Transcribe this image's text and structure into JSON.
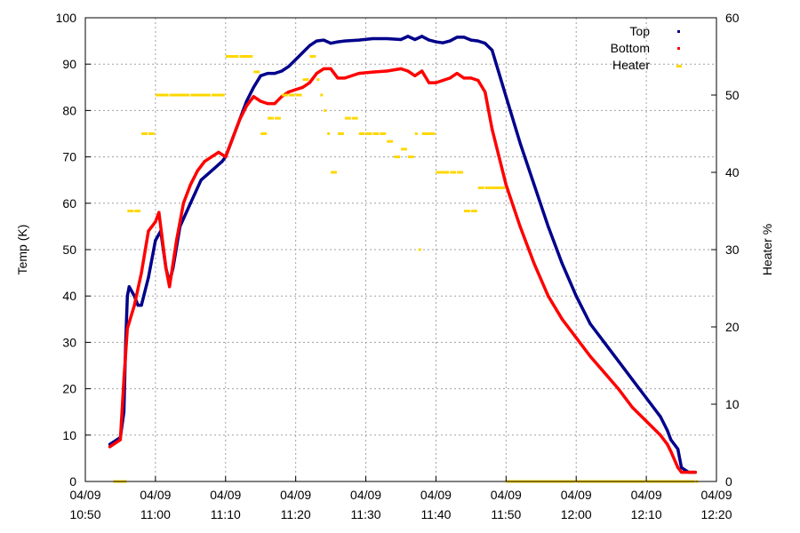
{
  "chart_data": {
    "type": "scatter",
    "title": "",
    "ylabel": "Temp (K)",
    "y2label": "Heater %",
    "xlabel": "",
    "ylim": [
      0,
      100
    ],
    "y2lim": [
      0,
      60
    ],
    "xlim": [
      "04/09 10:50",
      "04/09 12:20"
    ],
    "grid": true,
    "legend_position": "top-right",
    "yticks": [
      "0",
      "10",
      "20",
      "30",
      "40",
      "50",
      "60",
      "70",
      "80",
      "90",
      "100"
    ],
    "y2ticks": [
      "0",
      "10",
      "20",
      "30",
      "40",
      "50",
      "60"
    ],
    "xticks": [
      {
        "date": "04/09",
        "time": "10:50"
      },
      {
        "date": "04/09",
        "time": "11:00"
      },
      {
        "date": "04/09",
        "time": "11:10"
      },
      {
        "date": "04/09",
        "time": "11:20"
      },
      {
        "date": "04/09",
        "time": "11:30"
      },
      {
        "date": "04/09",
        "time": "11:40"
      },
      {
        "date": "04/09",
        "time": "11:50"
      },
      {
        "date": "04/09",
        "time": "12:00"
      },
      {
        "date": "04/09",
        "time": "12:10"
      },
      {
        "date": "04/09",
        "time": "12:20"
      }
    ],
    "series": [
      {
        "name": "Top",
        "color": "#00008b",
        "axis": "left",
        "x": [
          "10:53:30",
          "10:55:00",
          "10:55:30",
          "10:55:45",
          "10:56:00",
          "10:56:15",
          "10:57:00",
          "10:57:30",
          "10:58:00",
          "10:59:00",
          "11:00:00",
          "11:00:45",
          "11:01:30",
          "11:02:00",
          "11:02:30",
          "11:03:30",
          "11:05:00",
          "11:06:30",
          "11:08:00",
          "11:09:30",
          "11:10:00",
          "11:11:00",
          "11:12:00",
          "11:13:00",
          "11:14:00",
          "11:15:00",
          "11:16:00",
          "11:17:00",
          "11:18:00",
          "11:19:00",
          "11:20:00",
          "11:21:00",
          "11:22:00",
          "11:23:00",
          "11:24:00",
          "11:25:00",
          "11:26:00",
          "11:27:00",
          "11:29:00",
          "11:31:00",
          "11:33:00",
          "11:35:00",
          "11:36:00",
          "11:37:00",
          "11:38:00",
          "11:39:00",
          "11:40:00",
          "11:41:00",
          "11:42:00",
          "11:43:00",
          "11:44:00",
          "11:45:00",
          "11:46:00",
          "11:47:00",
          "11:48:00",
          "11:50:00",
          "11:52:00",
          "11:54:00",
          "11:56:00",
          "11:58:00",
          "12:00:00",
          "12:02:00",
          "12:04:00",
          "12:06:00",
          "12:08:00",
          "12:10:00",
          "12:12:00",
          "12:13:00",
          "12:13:30",
          "12:14:30",
          "12:15:00",
          "12:16:00",
          "12:17:00"
        ],
        "values": [
          8,
          9.5,
          15,
          30,
          40,
          42,
          40,
          38,
          38,
          44,
          52,
          54,
          46,
          43,
          46,
          55,
          60,
          65,
          67,
          69,
          70,
          74,
          78,
          82,
          85,
          87.5,
          88,
          88,
          88.5,
          89.5,
          91,
          92.5,
          94,
          95,
          95.2,
          94.5,
          94.8,
          95,
          95.2,
          95.5,
          95.5,
          95.3,
          96,
          95.3,
          96,
          95.2,
          94.8,
          94.6,
          95,
          95.8,
          95.8,
          95.2,
          95,
          94.5,
          93,
          83,
          73,
          64,
          55,
          47,
          40,
          34,
          30,
          26,
          22,
          18,
          14,
          11,
          9,
          7,
          3,
          2,
          2
        ]
      },
      {
        "name": "Bottom",
        "color": "#ff0000",
        "axis": "left",
        "x": [
          "10:53:30",
          "10:55:00",
          "10:55:30",
          "10:56:00",
          "10:57:00",
          "10:58:00",
          "10:59:00",
          "11:00:00",
          "11:00:30",
          "11:01:30",
          "11:02:00",
          "11:03:00",
          "11:04:00",
          "11:05:00",
          "11:06:00",
          "11:07:00",
          "11:08:00",
          "11:09:00",
          "11:10:00",
          "11:11:00",
          "11:12:00",
          "11:13:00",
          "11:14:00",
          "11:15:00",
          "11:16:00",
          "11:17:00",
          "11:18:00",
          "11:19:00",
          "11:20:00",
          "11:21:00",
          "11:22:00",
          "11:23:00",
          "11:24:00",
          "11:25:00",
          "11:26:00",
          "11:27:00",
          "11:29:00",
          "11:31:00",
          "11:33:00",
          "11:35:00",
          "11:36:00",
          "11:37:00",
          "11:38:00",
          "11:39:00",
          "11:40:00",
          "11:41:00",
          "11:42:00",
          "11:43:00",
          "11:44:00",
          "11:45:00",
          "11:46:00",
          "11:47:00",
          "11:48:00",
          "11:50:00",
          "11:52:00",
          "11:54:00",
          "11:56:00",
          "11:58:00",
          "12:00:00",
          "12:02:00",
          "12:04:00",
          "12:06:00",
          "12:08:00",
          "12:10:00",
          "12:12:00",
          "12:13:00",
          "12:13:30",
          "12:14:30",
          "12:15:00",
          "12:16:00",
          "12:17:00"
        ],
        "values": [
          7.5,
          9,
          22,
          33,
          38,
          45,
          54,
          56,
          58,
          46,
          42,
          52,
          60,
          64,
          67,
          69,
          70,
          71,
          70,
          74,
          78,
          81,
          83,
          82,
          81.5,
          81.5,
          83,
          84,
          84.5,
          85,
          86,
          88,
          89,
          89,
          87,
          87,
          88,
          88.3,
          88.5,
          89,
          88.5,
          87.5,
          88.5,
          86,
          86,
          86.5,
          87,
          88,
          87,
          87,
          86.5,
          84,
          76,
          64,
          55,
          47,
          40,
          35,
          31,
          27,
          23.5,
          20,
          16,
          13,
          10,
          8,
          6.5,
          3,
          2,
          2,
          2
        ]
      },
      {
        "name": "Heater",
        "color": "#ffd700",
        "axis": "right",
        "x": [
          "10:54:00",
          "10:56:00",
          "10:57:00",
          "10:58:00",
          "10:59:00",
          "11:00:00",
          "11:02:00",
          "11:05:00",
          "11:08:00",
          "11:10:00",
          "11:12:00",
          "11:14:00",
          "11:15:00",
          "11:16:00",
          "11:17:00",
          "11:18:00",
          "11:19:00",
          "11:20:00",
          "11:21:00",
          "11:22:00",
          "11:23:00",
          "11:23:30",
          "11:24:00",
          "11:24:30",
          "11:25:00",
          "11:26:00",
          "11:27:00",
          "11:28:00",
          "11:29:00",
          "11:30:00",
          "11:31:00",
          "11:32:00",
          "11:33:00",
          "11:34:00",
          "11:35:00",
          "11:36:00",
          "11:37:00",
          "11:37:30",
          "11:38:00",
          "11:40:00",
          "11:42:00",
          "11:43:00",
          "11:44:00",
          "11:45:00",
          "11:46:00",
          "11:47:00",
          "11:50:00",
          "12:00:00",
          "12:10:00",
          "12:17:00"
        ],
        "values": [
          0,
          35,
          35,
          45,
          45,
          50,
          50,
          50,
          50,
          55,
          55,
          53,
          45,
          47,
          47,
          50,
          50,
          50,
          52,
          55,
          52,
          50,
          48,
          45,
          40,
          45,
          47,
          47,
          45,
          45,
          45,
          45,
          44,
          42,
          43,
          42,
          45,
          30,
          45,
          40,
          40,
          40,
          35,
          35,
          38,
          38,
          0,
          0,
          0,
          0
        ]
      }
    ]
  }
}
